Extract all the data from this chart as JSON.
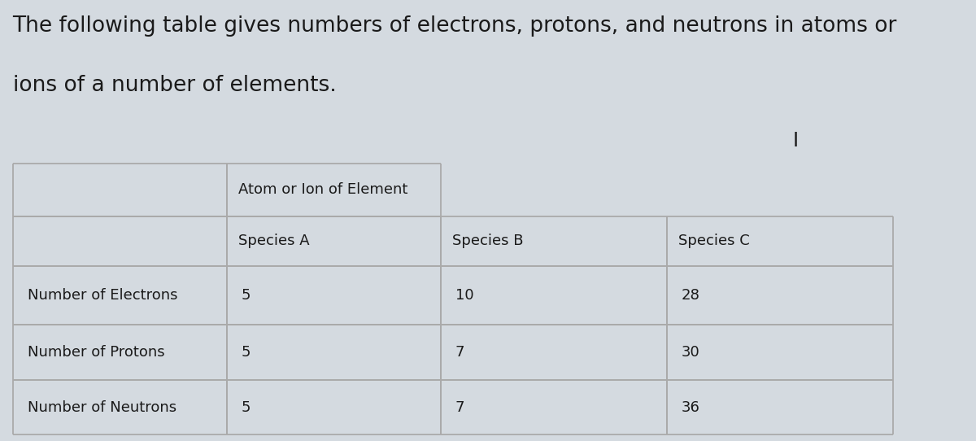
{
  "title_line1": "The following table gives numbers of electrons, protons, and neutrons in atoms or",
  "title_line2": "ions of a number of elements.",
  "title_fontsize": 19,
  "title_style": "normal",
  "background_color": "#d4dae0",
  "cell_bg": "#d4dae0",
  "border_color": "#aaaaaa",
  "text_color": "#1a1a1a",
  "header_row1_text": "Atom or Ion of Element",
  "header_row2_cols": [
    "Species A",
    "Species B",
    "Species C"
  ],
  "row_labels": [
    "Number of Electrons",
    "Number of Protons",
    "Number of Neutrons"
  ],
  "data": [
    [
      "5",
      "10",
      "28"
    ],
    [
      "5",
      "7",
      "30"
    ],
    [
      "5",
      "7",
      "36"
    ]
  ],
  "cursor_symbol": "I",
  "table_fontsize": 13
}
